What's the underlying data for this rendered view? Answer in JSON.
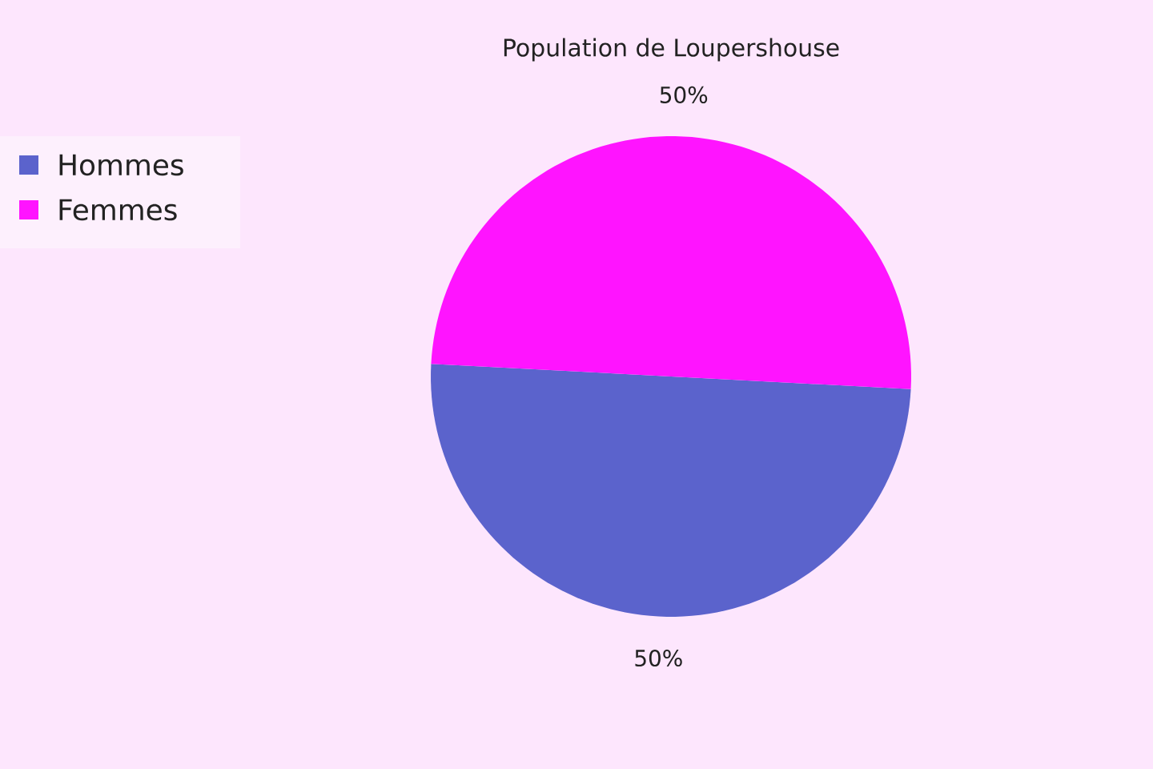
{
  "chart_data": {
    "type": "pie",
    "title": "Population de Loupershouse",
    "categories": [
      "Hommes",
      "Femmes"
    ],
    "values": [
      50,
      50
    ],
    "colors": [
      "#5b63cc",
      "#ff14ff"
    ],
    "value_labels": [
      "50%",
      "50%"
    ],
    "legend": "top left"
  }
}
